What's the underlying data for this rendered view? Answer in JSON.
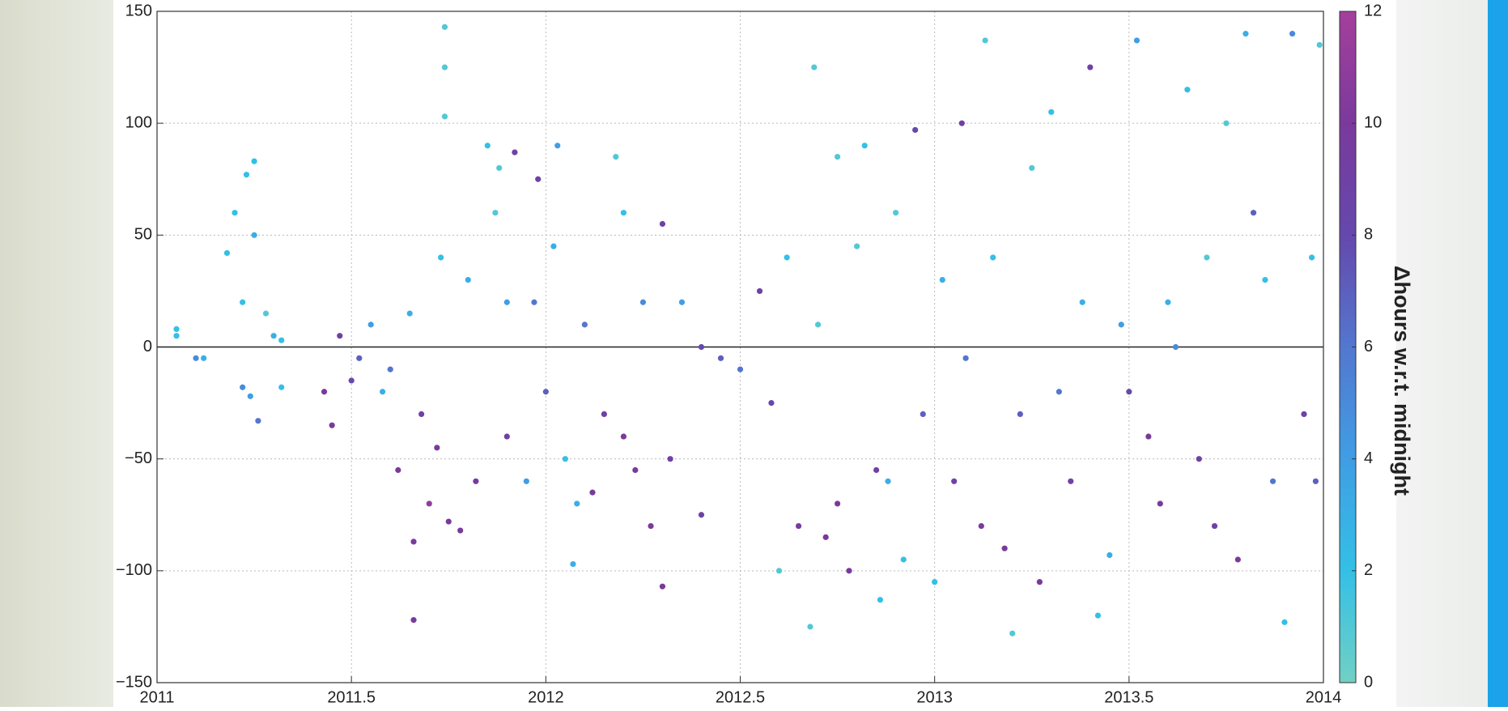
{
  "chart_data": {
    "type": "scatter",
    "x": [
      2011.05,
      2011.05,
      2011.1,
      2011.12,
      2011.18,
      2011.2,
      2011.22,
      2011.22,
      2011.23,
      2011.24,
      2011.25,
      2011.25,
      2011.26,
      2011.28,
      2011.3,
      2011.32,
      2011.32,
      2011.43,
      2011.45,
      2011.47,
      2011.5,
      2011.52,
      2011.55,
      2011.58,
      2011.6,
      2011.62,
      2011.66,
      2011.66,
      2011.65,
      2011.68,
      2011.7,
      2011.72,
      2011.73,
      2011.74,
      2011.74,
      2011.74,
      2011.75,
      2011.78,
      2011.8,
      2011.82,
      2011.85,
      2011.87,
      2011.88,
      2011.9,
      2011.9,
      2011.92,
      2011.95,
      2011.97,
      2011.98,
      2012,
      2012.02,
      2012.03,
      2012.05,
      2012.07,
      2012.08,
      2012.1,
      2012.12,
      2012.15,
      2012.18,
      2012.2,
      2012.2,
      2012.23,
      2012.25,
      2012.27,
      2012.3,
      2012.3,
      2012.32,
      2012.35,
      2012.4,
      2012.4,
      2012.45,
      2012.5,
      2012.55,
      2012.58,
      2012.6,
      2012.62,
      2012.65,
      2012.68,
      2012.69,
      2012.7,
      2012.72,
      2012.75,
      2012.75,
      2012.78,
      2012.8,
      2012.82,
      2012.85,
      2012.86,
      2012.88,
      2012.9,
      2012.92,
      2012.95,
      2012.97,
      2013,
      2013.02,
      2013.05,
      2013.07,
      2013.08,
      2013.12,
      2013.13,
      2013.15,
      2013.18,
      2013.2,
      2013.22,
      2013.25,
      2013.27,
      2013.3,
      2013.32,
      2013.35,
      2013.38,
      2013.4,
      2013.42,
      2013.45,
      2013.48,
      2013.5,
      2013.52,
      2013.55,
      2013.58,
      2013.6,
      2013.62,
      2013.65,
      2013.68,
      2013.7,
      2013.72,
      2013.75,
      2013.78,
      2013.8,
      2013.82,
      2013.85,
      2013.87,
      2013.9,
      2013.92,
      2013.95,
      2013.97,
      2013.98,
      2013.99
    ],
    "values": [
      5,
      8,
      -5,
      -5,
      42,
      60,
      20,
      -18,
      77,
      -22,
      83,
      50,
      -33,
      15,
      5,
      -18,
      3,
      -20,
      -35,
      5,
      -15,
      -5,
      10,
      -20,
      -10,
      -55,
      -122,
      -87,
      15,
      -30,
      -70,
      -45,
      40,
      143,
      103,
      125,
      -78,
      -82,
      30,
      -60,
      90,
      60,
      80,
      -40,
      20,
      87,
      -60,
      20,
      75,
      -20,
      45,
      90,
      -50,
      -97,
      -70,
      10,
      -65,
      -30,
      85,
      60,
      -40,
      -55,
      20,
      -80,
      -107,
      55,
      -50,
      20,
      -75,
      0,
      -5,
      -10,
      25,
      -25,
      -100,
      40,
      -80,
      -125,
      125,
      10,
      -85,
      -70,
      85,
      -100,
      45,
      90,
      -55,
      -113,
      -60,
      60,
      -95,
      97,
      -30,
      -105,
      30,
      -60,
      100,
      -5,
      -80,
      137,
      40,
      -90,
      -128,
      -30,
      80,
      -105,
      105,
      -20,
      -60,
      20,
      125,
      -120,
      -93,
      10,
      -20,
      137,
      -40,
      -70,
      20,
      0,
      115,
      -50,
      40,
      -80,
      100,
      -95,
      140,
      60,
      30,
      -60,
      -123,
      140,
      -30,
      40,
      -60,
      135
    ],
    "hours": [
      2,
      2,
      5,
      3,
      2,
      2,
      2,
      5,
      2,
      4,
      2,
      3,
      6,
      1,
      3,
      2,
      2,
      10,
      10,
      9,
      8,
      7,
      4,
      3,
      6,
      10,
      10,
      10,
      3,
      9,
      11,
      10,
      2,
      1,
      1,
      1,
      10,
      10,
      3,
      10,
      2,
      1,
      1,
      9,
      4,
      9,
      4,
      6,
      9,
      7,
      3,
      4,
      2,
      3,
      3,
      6,
      10,
      9,
      1,
      2,
      10,
      10,
      5,
      10,
      10,
      9,
      9,
      4,
      9,
      8,
      7,
      6,
      9,
      8,
      1,
      2,
      10,
      1,
      1,
      1,
      10,
      10,
      1,
      10,
      1,
      2,
      9,
      2,
      3,
      1,
      2,
      8,
      7,
      2,
      3,
      9,
      9,
      6,
      10,
      1,
      2,
      10,
      1,
      7,
      1,
      10,
      2,
      6,
      9,
      3,
      9,
      2,
      3,
      4,
      8,
      4,
      10,
      10,
      3,
      5,
      2,
      9,
      1,
      9,
      1,
      10,
      3,
      7,
      2,
      6,
      2,
      5,
      9,
      2,
      7,
      1
    ],
    "xlim": [
      2011,
      2014
    ],
    "xticks": [
      2011,
      2011.5,
      2012,
      2012.5,
      2013,
      2013.5,
      2014
    ],
    "ylim": [
      -150,
      150
    ],
    "yticks": [
      {
        "value": -150,
        "label": "−150"
      },
      {
        "value": -100,
        "label": "−100"
      },
      {
        "value": -50,
        "label": "−50"
      },
      0,
      50,
      100,
      150
    ],
    "grid": true,
    "colorbar": {
      "label": "Δhours w.r.t. midnight",
      "lim": [
        0,
        12
      ],
      "ticks": [
        0,
        2,
        4,
        6,
        8,
        10,
        12
      ],
      "colormap": [
        "#72d0c4",
        "#33c0e6",
        "#3f9ee4",
        "#5377cf",
        "#6548ad",
        "#7a3a9c",
        "#a53f9c"
      ]
    }
  }
}
